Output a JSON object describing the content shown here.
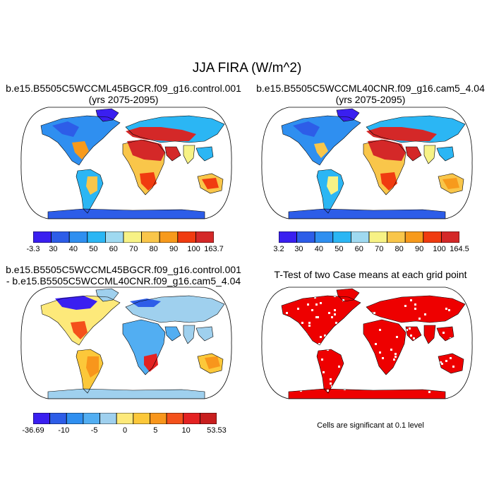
{
  "title": "JJA FIRA (W/m^2)",
  "panels": [
    {
      "id": "case1",
      "title_line1": "b.e15.B5505C5WCCML45BGCR.f09_g16.control.001",
      "title_line2": "(yrs 2075-2095)",
      "palette": [
        "#3a1ff0",
        "#2d5de8",
        "#2f8ff0",
        "#2bb6f4",
        "#9fd9f0",
        "#f7f285",
        "#f9c64a",
        "#f79a1c",
        "#f03b10",
        "#d42828"
      ],
      "colorbar_labels": [
        "-3.3",
        "30",
        "40",
        "50",
        "60",
        "70",
        "80",
        "90",
        "100",
        "163.7"
      ]
    },
    {
      "id": "case2",
      "title_line1": "b.e15.B5505C5WCCML40CNR.f09_g16.cam5_4.04",
      "title_line2": "(yrs 2075-2095)",
      "palette": [
        "#3a1ff0",
        "#2d5de8",
        "#2f8ff0",
        "#2bb6f4",
        "#9fd9f0",
        "#f7f285",
        "#f9c64a",
        "#f79a1c",
        "#f03b10",
        "#d42828"
      ],
      "colorbar_labels": [
        "3.2",
        "30",
        "40",
        "50",
        "60",
        "70",
        "80",
        "90",
        "100",
        "164.5"
      ]
    },
    {
      "id": "difference",
      "title_line1": "b.e15.B5505C5WCCML45BGCR.f09_g16.control.001",
      "title_line2": "- b.e15.B5505C5WCCML40CNR.f09_g16.cam5_4.04",
      "palette": [
        "#3a1ff0",
        "#2d5de8",
        "#2f8ff0",
        "#52aef2",
        "#9fd0ee",
        "#fde97a",
        "#fcc83a",
        "#f8961c",
        "#f4511b",
        "#e42222",
        "#c81e1e"
      ],
      "colorbar_labels": [
        "-36.69",
        "",
        "-10",
        "",
        "-5",
        "",
        "0",
        "",
        "5",
        "",
        "10",
        "",
        "53.53"
      ]
    },
    {
      "id": "ttest",
      "title_line1": "T-Test of two Case means at each grid point",
      "note": "Cells are significant at 0.1 level",
      "significant_color": "#ee0000"
    }
  ]
}
